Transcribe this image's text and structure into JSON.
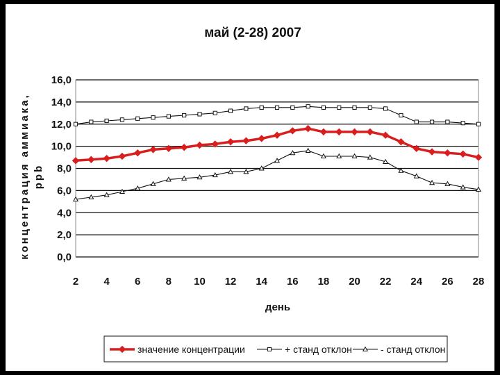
{
  "chart_data": {
    "type": "line",
    "title": "май (2-28) 2007",
    "xlabel": "день",
    "ylabel_line1": "концентрация аммиака,",
    "ylabel_line2": "ppb",
    "x_ticks": [
      "2",
      "4",
      "6",
      "8",
      "10",
      "12",
      "14",
      "16",
      "18",
      "20",
      "22",
      "24",
      "26",
      "28"
    ],
    "y_ticks": [
      "0,0",
      "2,0",
      "4,0",
      "6,0",
      "8,0",
      "10,0",
      "12,0",
      "14,0",
      "16,0"
    ],
    "xlim": [
      2,
      28
    ],
    "ylim": [
      0,
      16
    ],
    "grid": true,
    "legend_position": "bottom",
    "x": [
      2,
      3,
      4,
      5,
      6,
      7,
      8,
      9,
      10,
      11,
      12,
      13,
      14,
      15,
      16,
      17,
      18,
      19,
      20,
      21,
      22,
      23,
      24,
      25,
      26,
      27,
      28
    ],
    "series": [
      {
        "name": "значение концентрации",
        "color": "#d81e1e",
        "marker": "diamond",
        "values": [
          8.7,
          8.8,
          8.9,
          9.1,
          9.4,
          9.7,
          9.8,
          9.9,
          10.1,
          10.2,
          10.4,
          10.5,
          10.7,
          11.0,
          11.4,
          11.6,
          11.3,
          11.3,
          11.3,
          11.3,
          11.0,
          10.4,
          9.8,
          9.5,
          9.4,
          9.3,
          9.0
        ]
      },
      {
        "name": "+ станд отклон",
        "color": "#111111",
        "marker": "square",
        "values": [
          12.0,
          12.2,
          12.3,
          12.4,
          12.5,
          12.6,
          12.7,
          12.8,
          12.9,
          13.0,
          13.2,
          13.4,
          13.5,
          13.5,
          13.5,
          13.6,
          13.5,
          13.5,
          13.5,
          13.5,
          13.4,
          12.8,
          12.2,
          12.2,
          12.2,
          12.1,
          12.0
        ]
      },
      {
        "name": "- станд отклон",
        "color": "#111111",
        "marker": "triangle",
        "values": [
          5.2,
          5.4,
          5.6,
          5.9,
          6.2,
          6.6,
          7.0,
          7.1,
          7.2,
          7.4,
          7.7,
          7.7,
          8.0,
          8.7,
          9.4,
          9.6,
          9.1,
          9.1,
          9.1,
          9.0,
          8.6,
          7.8,
          7.3,
          6.7,
          6.6,
          6.3,
          6.1
        ]
      }
    ]
  }
}
